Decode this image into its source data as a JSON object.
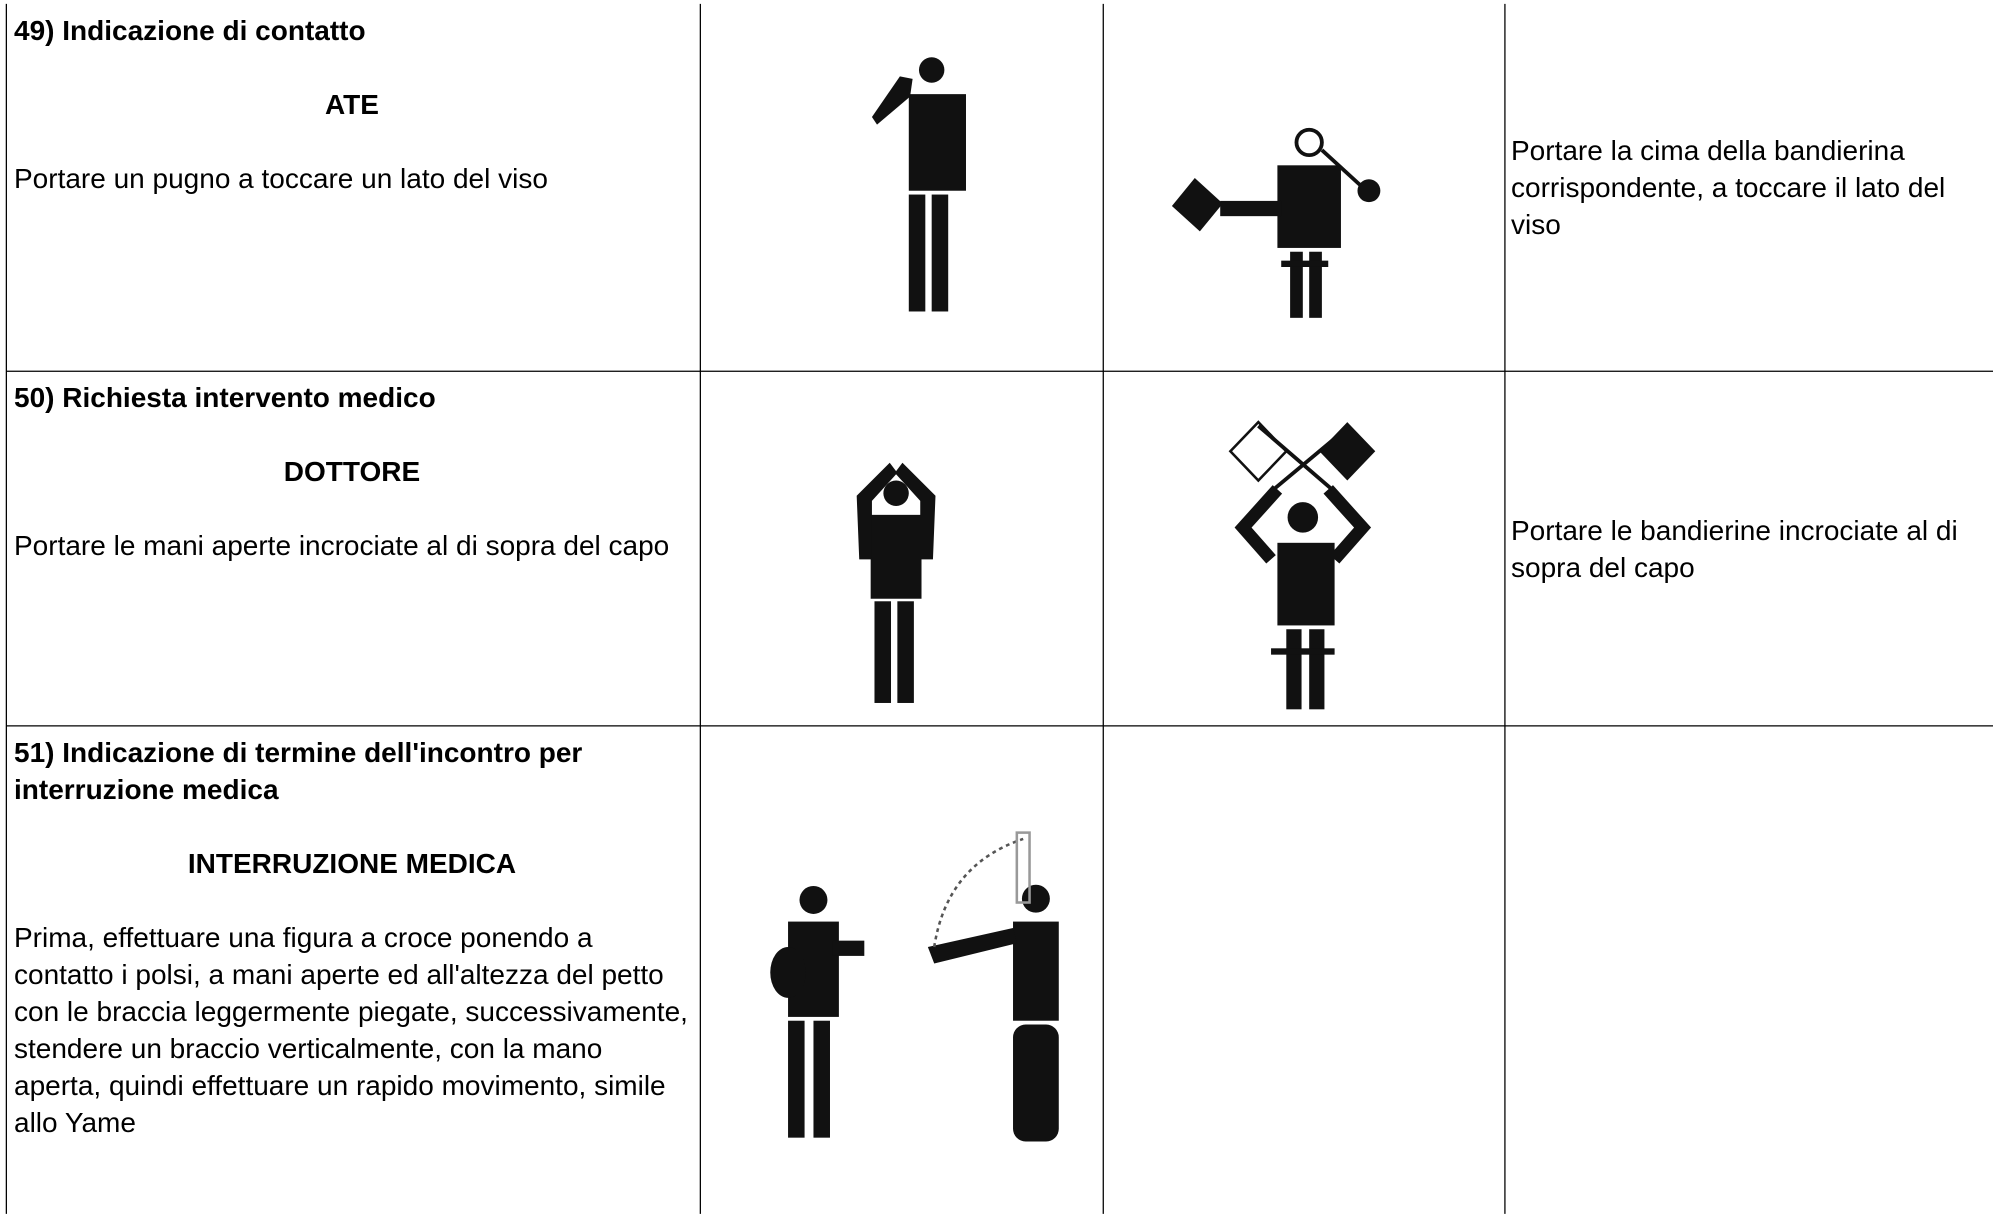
{
  "table": {
    "rows": [
      {
        "title": "49) Indicazione di contatto",
        "keyword": "ATE",
        "description": "Portare un pugno a toccare un lato del viso",
        "flag_description": "Portare la cima della bandierina corrispondente, a toccare il lato del viso"
      },
      {
        "title": "50) Richiesta intervento medico",
        "keyword": "DOTTORE",
        "description": "Portare le mani aperte incrociate al di sopra del capo",
        "flag_description": "Portare le bandierine incrociate al di sopra del capo"
      },
      {
        "title": "51) Indicazione di termine dell'incontro per interruzione medica",
        "keyword": "INTERRUZIONE MEDICA",
        "description": "Prima, effettuare una figura a croce ponendo a contatto i polsi, a mani aperte ed all'altezza del petto con le braccia leggermente piegate, successivamente, stendere un braccio verticalmente, con la mano aperta, quindi effettuare un rapido movimento, simile allo Yame"
      }
    ]
  }
}
